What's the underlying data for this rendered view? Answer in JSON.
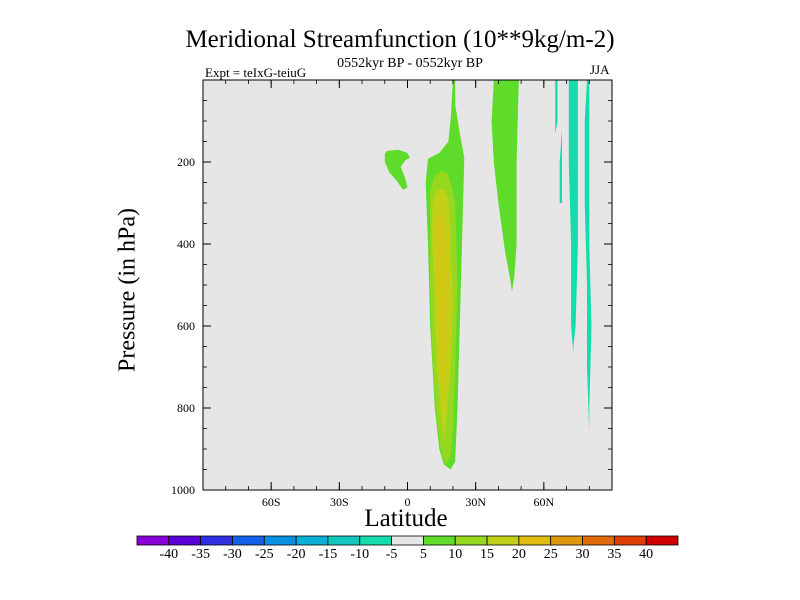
{
  "title": "Meridional Streamfunction (10**9kg/m-2)",
  "subtitle": "0552kyr BP - 0552kyr BP",
  "experiment": "Expt = teIxG-teiuG",
  "season": "JJA",
  "chart_data": {
    "type": "contour",
    "xlabel": "Latitude",
    "ylabel": "Pressure (in hPa)",
    "xlim": [
      -90,
      90
    ],
    "ylim": [
      1000,
      0
    ],
    "y_reversed": true,
    "x_ticks": [
      {
        "value": -60,
        "label": "60S"
      },
      {
        "value": -30,
        "label": "30S"
      },
      {
        "value": 0,
        "label": "0"
      },
      {
        "value": 30,
        "label": "30N"
      },
      {
        "value": 60,
        "label": "60N"
      }
    ],
    "y_ticks": [
      {
        "value": 200,
        "label": "200"
      },
      {
        "value": 400,
        "label": "400"
      },
      {
        "value": 600,
        "label": "600"
      },
      {
        "value": 800,
        "label": "800"
      },
      {
        "value": 1000,
        "label": "1000"
      }
    ],
    "background_color": "#e6e6e6",
    "colorbar": {
      "labels": [
        "-40",
        "-35",
        "-30",
        "-25",
        "-20",
        "-15",
        "-10",
        "-5",
        "5",
        "10",
        "15",
        "20",
        "25",
        "30",
        "35",
        "40"
      ],
      "colors": [
        "#8a00d8",
        "#5a00d6",
        "#2f31e0",
        "#1560e8",
        "#0a90e0",
        "#0ab0d8",
        "#10c8c0",
        "#14dcaa",
        "#e6e6e6",
        "#5fdc2a",
        "#96d820",
        "#c2d018",
        "#e0bc10",
        "#e0960c",
        "#e06c08",
        "#e04004",
        "#d00000"
      ]
    },
    "regions": [
      {
        "level": 5,
        "color": "#5fdc2a",
        "points": [
          [
            -9,
            173
          ],
          [
            -4,
            170
          ],
          [
            0,
            178
          ],
          [
            1,
            190
          ],
          [
            -1,
            196
          ],
          [
            -3,
            212
          ],
          [
            -1,
            240
          ],
          [
            0,
            262
          ],
          [
            -2,
            268
          ],
          [
            -5,
            244
          ],
          [
            -8,
            225
          ],
          [
            -10,
            200
          ],
          [
            -10,
            180
          ]
        ]
      },
      {
        "level": 5,
        "color": "#5fdc2a",
        "points": [
          [
            9,
            192
          ],
          [
            14,
            178
          ],
          [
            18,
            150
          ],
          [
            19,
            95
          ],
          [
            20,
            0
          ],
          [
            21,
            0
          ],
          [
            21,
            60
          ],
          [
            23,
            130
          ],
          [
            25,
            190
          ],
          [
            24,
            400
          ],
          [
            23,
            600
          ],
          [
            22,
            800
          ],
          [
            21,
            930
          ],
          [
            19,
            950
          ],
          [
            16,
            938
          ],
          [
            14,
            900
          ],
          [
            12,
            800
          ],
          [
            10,
            600
          ],
          [
            9,
            400
          ],
          [
            8,
            250
          ]
        ]
      },
      {
        "level": 5,
        "color": "#5fdc2a",
        "points": [
          [
            39,
            0
          ],
          [
            49,
            0
          ],
          [
            48,
            200
          ],
          [
            48,
            400
          ],
          [
            47,
            480
          ],
          [
            46,
            516
          ],
          [
            45,
            480
          ],
          [
            43,
            420
          ],
          [
            40,
            300
          ],
          [
            38,
            200
          ],
          [
            37,
            100
          ],
          [
            38,
            0
          ]
        ]
      },
      {
        "level": 10,
        "color": "#96d820",
        "points": [
          [
            10,
            268
          ],
          [
            12,
            233
          ],
          [
            15,
            222
          ],
          [
            18,
            230
          ],
          [
            21,
            300
          ],
          [
            22,
            500
          ],
          [
            21,
            700
          ],
          [
            20,
            850
          ],
          [
            19,
            917
          ],
          [
            17,
            937
          ],
          [
            15,
            912
          ],
          [
            13,
            830
          ],
          [
            11,
            680
          ],
          [
            10,
            500
          ],
          [
            10,
            350
          ]
        ]
      },
      {
        "level": 15,
        "color": "#c2d018",
        "points": [
          [
            11,
            300
          ],
          [
            13,
            270
          ],
          [
            16,
            265
          ],
          [
            18,
            290
          ],
          [
            19,
            400
          ],
          [
            20,
            550
          ],
          [
            19,
            700
          ],
          [
            17,
            830
          ],
          [
            16,
            880
          ],
          [
            15,
            830
          ],
          [
            13,
            700
          ],
          [
            12,
            550
          ],
          [
            11,
            400
          ]
        ]
      },
      {
        "level": 20,
        "color": "#d0c814",
        "points": [
          [
            12,
            340
          ],
          [
            15,
            325
          ],
          [
            17,
            360
          ],
          [
            18,
            500
          ],
          [
            17,
            680
          ],
          [
            16,
            760
          ],
          [
            14,
            680
          ],
          [
            13,
            500
          ],
          [
            12,
            400
          ]
        ]
      },
      {
        "level": -5,
        "color": "#14dcaa",
        "points": [
          [
            72,
            0
          ],
          [
            75,
            0
          ],
          [
            75,
            200
          ],
          [
            75,
            400
          ],
          [
            74,
            600
          ],
          [
            73,
            650
          ],
          [
            73,
            670
          ],
          [
            72,
            600
          ],
          [
            72,
            400
          ],
          [
            71,
            200
          ],
          [
            71,
            0
          ]
        ]
      },
      {
        "level": -5,
        "color": "#14dcaa",
        "points": [
          [
            79,
            0
          ],
          [
            80,
            0
          ],
          [
            80,
            200
          ],
          [
            80,
            400
          ],
          [
            81,
            600
          ],
          [
            80,
            800
          ],
          [
            80,
            860
          ],
          [
            79,
            700
          ],
          [
            79,
            500
          ],
          [
            78,
            300
          ],
          [
            78,
            100
          ]
        ]
      },
      {
        "level": -5,
        "color": "#14dcaa",
        "points": [
          [
            65,
            0
          ],
          [
            66,
            0
          ],
          [
            66,
            100
          ],
          [
            65,
            130
          ],
          [
            65,
            60
          ]
        ]
      },
      {
        "level": -5,
        "color": "#14dcaa",
        "points": [
          [
            68,
            120
          ],
          [
            68,
            300
          ],
          [
            67,
            300
          ],
          [
            67,
            200
          ]
        ]
      }
    ]
  }
}
